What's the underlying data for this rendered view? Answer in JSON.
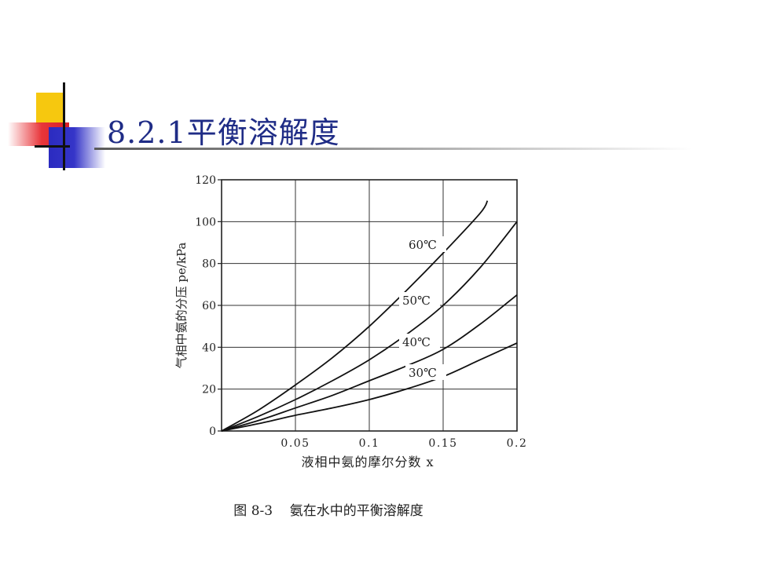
{
  "slide": {
    "title": "8.2.1平衡溶解度"
  },
  "chart_data": {
    "type": "line",
    "title": "",
    "caption": "图 8-3    氨在水中的平衡溶解度",
    "xlabel": "液相中氨的摩尔分数 x",
    "ylabel": "气相中氨的分压 pe/kPa",
    "xlim": [
      0,
      0.2
    ],
    "ylim": [
      0,
      120
    ],
    "xticks": [
      0.05,
      0.1,
      0.15,
      0.2
    ],
    "xtick_labels": [
      "0.05",
      "0.1",
      "0.15",
      "0.2"
    ],
    "yticks": [
      0,
      20,
      40,
      60,
      80,
      100,
      120
    ],
    "ytick_labels": [
      "0",
      "20",
      "40",
      "60",
      "80",
      "100",
      "120"
    ],
    "grid": true,
    "series": [
      {
        "name": "60℃",
        "x": [
          0,
          0.025,
          0.05,
          0.075,
          0.1,
          0.125,
          0.15,
          0.175,
          0.18
        ],
        "y": [
          0,
          10,
          22,
          35,
          50,
          67,
          85,
          104,
          110
        ]
      },
      {
        "name": "50℃",
        "x": [
          0,
          0.025,
          0.05,
          0.075,
          0.1,
          0.125,
          0.15,
          0.175,
          0.2
        ],
        "y": [
          0,
          7,
          15,
          24,
          34,
          46,
          60,
          78,
          100
        ]
      },
      {
        "name": "40℃",
        "x": [
          0,
          0.025,
          0.05,
          0.075,
          0.1,
          0.125,
          0.15,
          0.175,
          0.2
        ],
        "y": [
          0,
          5,
          11,
          17,
          24,
          31,
          39,
          51,
          65
        ]
      },
      {
        "name": "30℃",
        "x": [
          0,
          0.025,
          0.05,
          0.075,
          0.1,
          0.125,
          0.15,
          0.175,
          0.2
        ],
        "y": [
          0,
          3.5,
          7.5,
          11,
          15,
          20,
          26,
          34,
          42
        ]
      }
    ]
  }
}
